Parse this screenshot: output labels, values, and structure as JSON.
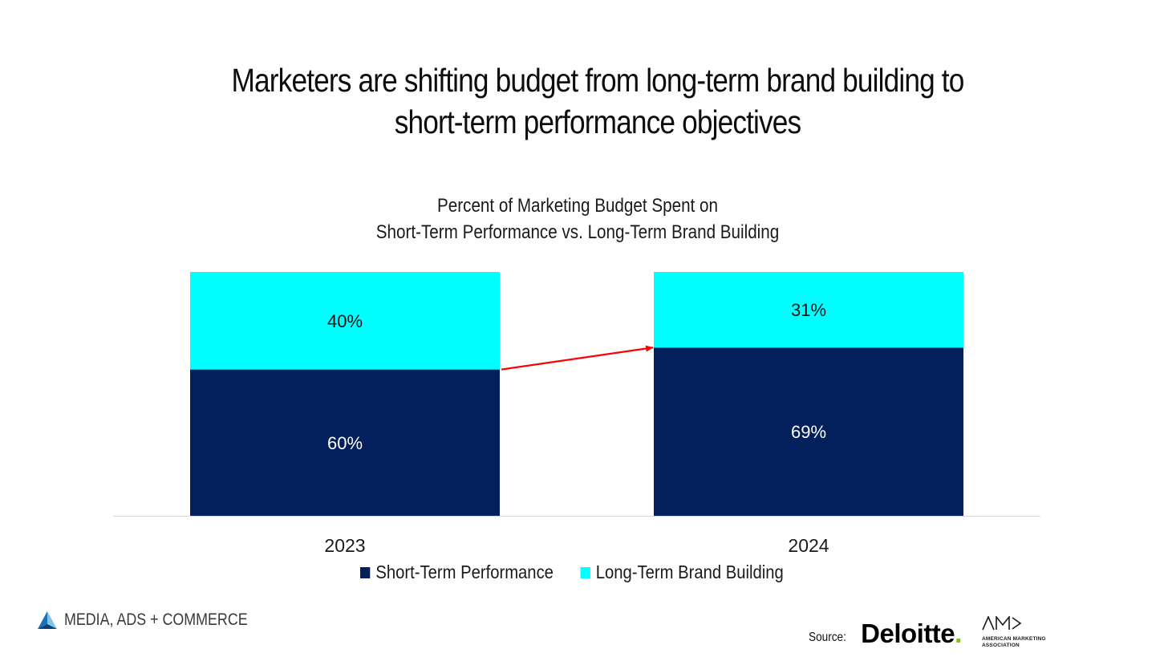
{
  "headline": {
    "line1": "Marketers are shifting budget from long-term brand building to",
    "line2": "short-term performance objectives"
  },
  "chart_data": {
    "type": "bar",
    "stacked": true,
    "title_line1": "Percent of Marketing Budget Spent on",
    "title_line2": "Short-Term Performance vs. Long-Term Brand Building",
    "categories": [
      "2023",
      "2024"
    ],
    "series": [
      {
        "name": "Short-Term Performance",
        "values": [
          60,
          69
        ],
        "labels": [
          "60%",
          "69%"
        ],
        "color": "#03205c",
        "label_color": "#ffffff"
      },
      {
        "name": "Long-Term Brand Building",
        "values": [
          40,
          31
        ],
        "labels": [
          "40%",
          "31%"
        ],
        "color": "#00ffff",
        "label_color": "#111111"
      }
    ],
    "ylim": [
      0,
      100
    ],
    "grid": false,
    "legend_position": "bottom",
    "annotation": "red arrow from top of 2023 Short-Term Performance segment to top of 2024 Short-Term Performance segment",
    "annotation_color": "#ff0000"
  },
  "footer": {
    "brand": "MEDIA, ADS + COMMERCE",
    "source_label": "Source:",
    "deloitte_name": "Deloitte",
    "deloitte_dot": ".",
    "ama_monogram": "AM>",
    "ama_line1": "AMERICAN MARKETING",
    "ama_line2": "ASSOCIATION",
    "deloitte_accent": "#86bc25",
    "brand_icon": "triangle-logo-icon"
  }
}
